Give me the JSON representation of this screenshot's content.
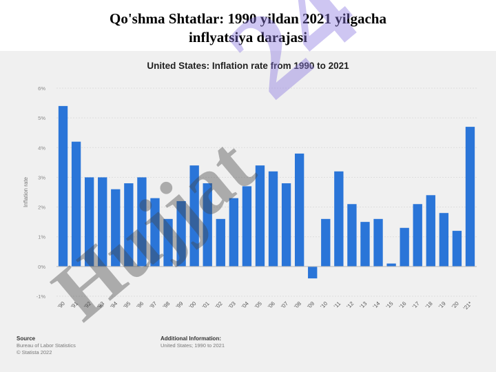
{
  "slide_title": {
    "line1": "Qo'shma Shtatlar: 1990 yildan 2021 yilgacha",
    "line2": "inflyatsiya darajasi"
  },
  "chart_data": {
    "type": "bar",
    "title": "United States: Inflation rate from 1990 to 2021",
    "ylabel": "Inflation rate",
    "xlabel": "",
    "ylim": [
      -1,
      6
    ],
    "yticks": [
      "-1%",
      "0%",
      "1%",
      "2%",
      "3%",
      "4%",
      "5%",
      "6%"
    ],
    "grid": true,
    "bar_color": "#2a75d8",
    "categories": [
      "'90",
      "'91",
      "'92",
      "'93",
      "'94",
      "'95",
      "'96",
      "'97",
      "'98",
      "'99",
      "'00",
      "'01",
      "'02",
      "'03",
      "'04",
      "'05",
      "'06",
      "'07",
      "'08",
      "'09",
      "'10",
      "'11",
      "'12",
      "'13",
      "'14",
      "'15",
      "'16",
      "'17",
      "'18",
      "'19",
      "'20",
      "'21*"
    ],
    "values": [
      5.4,
      4.2,
      3.0,
      3.0,
      2.6,
      2.8,
      3.0,
      2.3,
      1.6,
      2.2,
      3.4,
      2.8,
      1.6,
      2.3,
      2.7,
      3.4,
      3.2,
      2.8,
      3.8,
      -0.4,
      1.6,
      3.2,
      2.1,
      1.5,
      1.6,
      0.1,
      1.3,
      2.1,
      2.4,
      1.8,
      1.2,
      4.7
    ]
  },
  "footer": {
    "source_label": "Source",
    "source_line1": "Bureau of Labor Statistics",
    "source_line2": "© Statista 2022",
    "info_label": "Additional Information:",
    "info_line1": "United States; 1990 to 2021"
  },
  "watermark": {
    "text_a": "24",
    "text_b": "Hujjat",
    "color_a": "#8a78e0",
    "color_b": "#444444"
  }
}
